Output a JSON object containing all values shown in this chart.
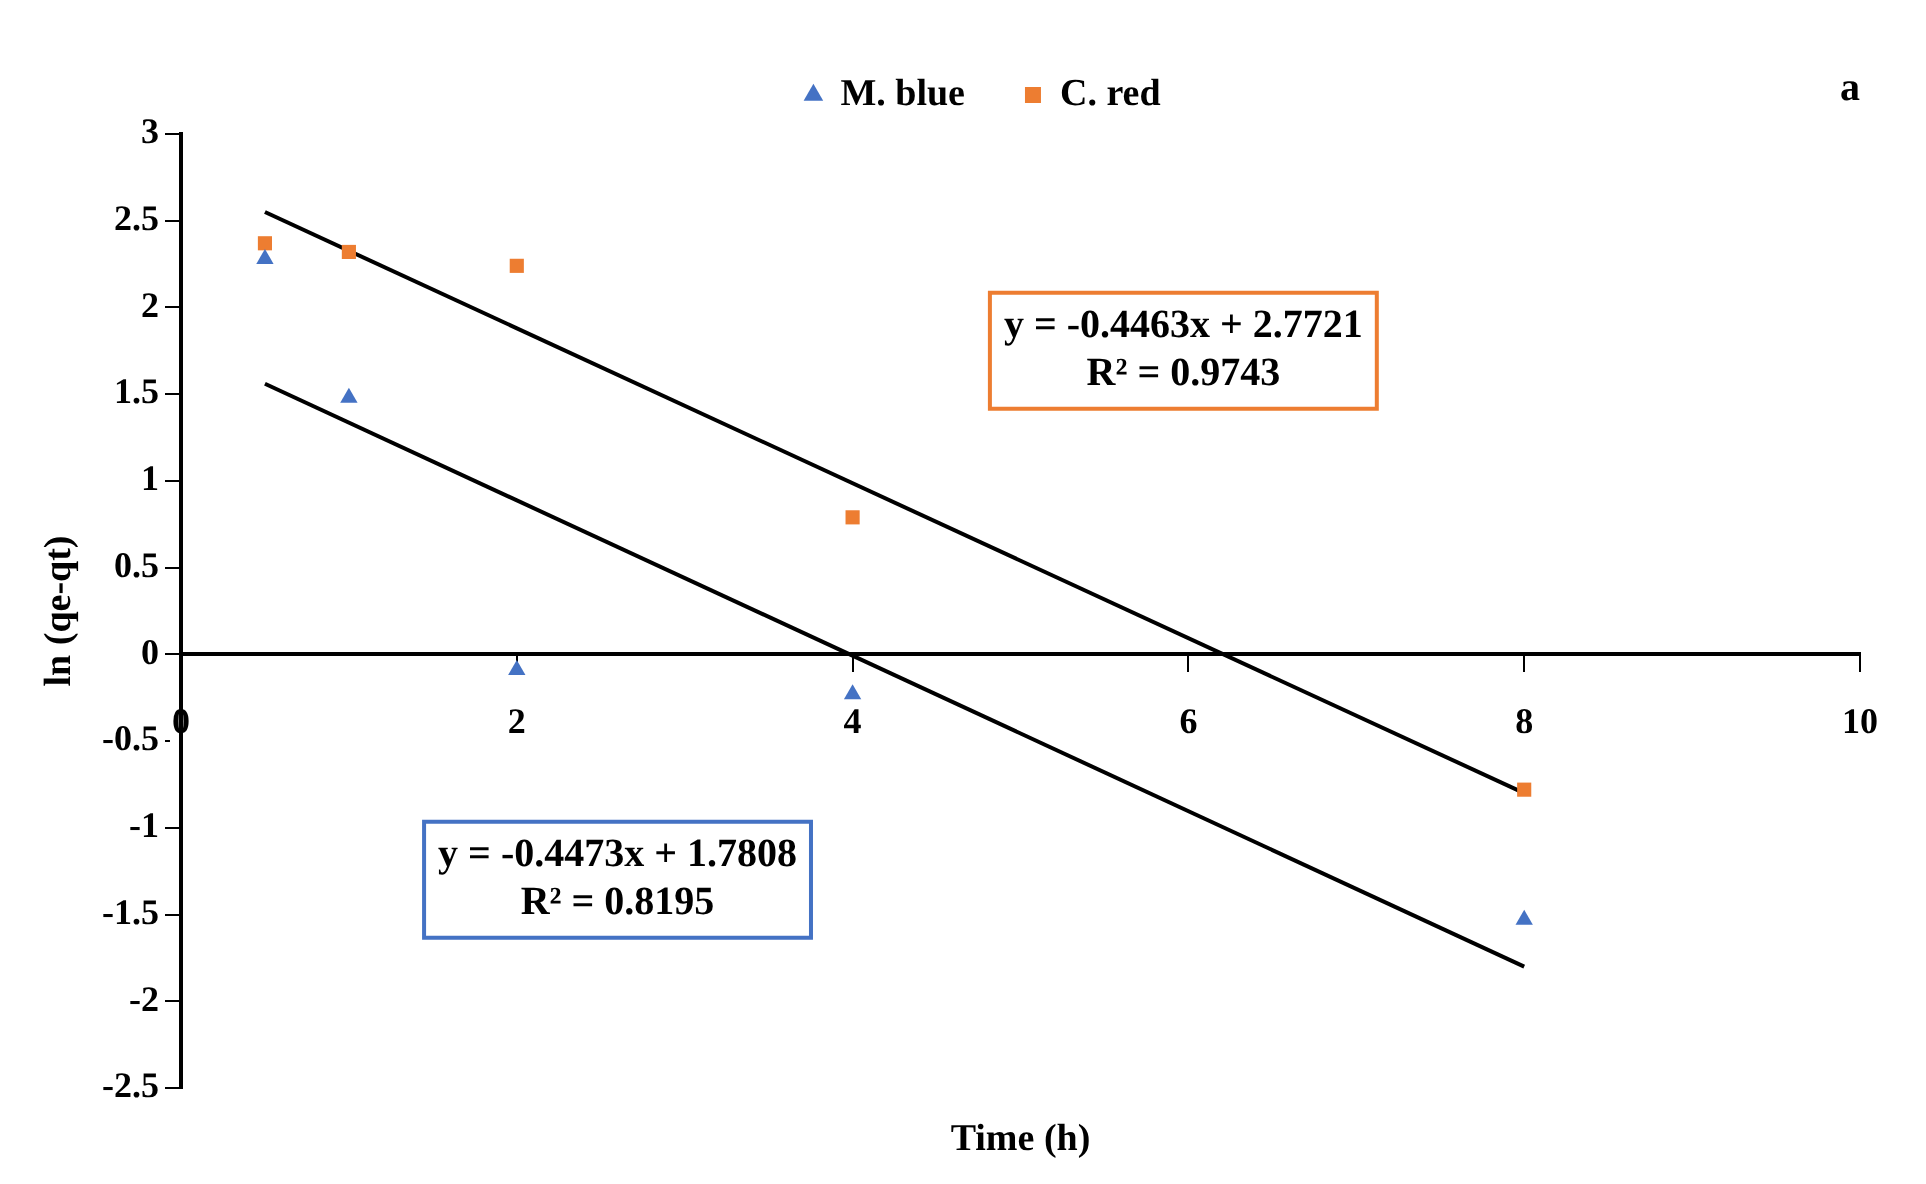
{
  "chart_data": {
    "type": "scatter",
    "xlabel": "Time (h)",
    "ylabel": "ln (qe-qt)",
    "xlim": [
      0,
      10
    ],
    "xticks": [
      0,
      2,
      4,
      6,
      8,
      10
    ],
    "ylim": [
      -2.5,
      3
    ],
    "yticks": [
      -2.5,
      -2,
      -1.5,
      -1,
      -0.5,
      0,
      0.5,
      1,
      1.5,
      2,
      2.5,
      3
    ],
    "grid": false,
    "legend": "top",
    "series": [
      {
        "name": "M. blue",
        "type": "scatter",
        "marker": "triangle",
        "color": "#4472c4",
        "x": [
          0.5,
          1,
          2,
          4,
          8
        ],
        "values": [
          2.28,
          1.48,
          -0.09,
          -0.23,
          -1.53
        ]
      },
      {
        "name": "C. red",
        "type": "scatter",
        "marker": "square",
        "color": "#ed7d31",
        "x": [
          0.5,
          1,
          2,
          4,
          8
        ],
        "values": [
          2.37,
          2.32,
          2.24,
          0.79,
          -0.78
        ]
      },
      {
        "type": "line",
        "marker": "none",
        "color": "#000000",
        "x": [
          0.5,
          8
        ],
        "values": [
          1.56,
          -1.8
        ]
      },
      {
        "type": "line",
        "marker": "none",
        "color": "#000000",
        "x": [
          0.5,
          8
        ],
        "values": [
          2.55,
          -0.8
        ]
      }
    ],
    "annotations": [
      "y = -0.4473x + 1.7808\nR² = 0.8195",
      "y = -0.4463x + 2.7721\nR² = 0.9743",
      "a"
    ]
  }
}
